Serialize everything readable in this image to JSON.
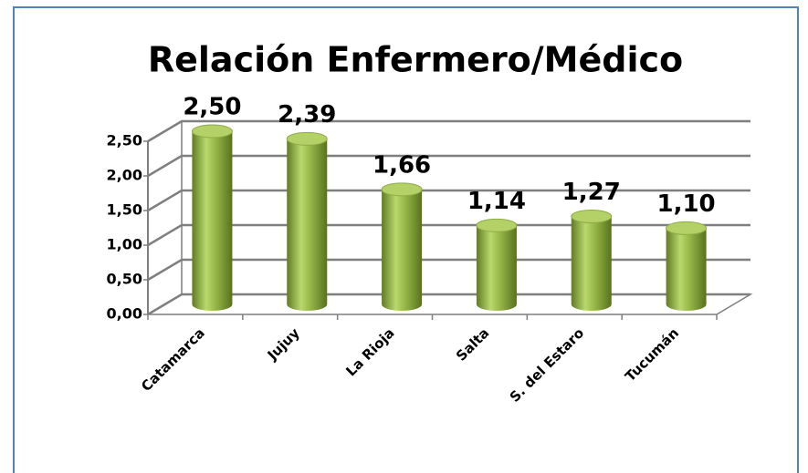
{
  "chart_data": {
    "type": "bar",
    "title": "Relación Enfermero/Médico",
    "categories": [
      "Catamarca",
      "Jujuy",
      "La Rioja",
      "Salta",
      "S. del Estaro",
      "Tucumán"
    ],
    "values": [
      2.5,
      2.39,
      1.66,
      1.14,
      1.27,
      1.1
    ],
    "value_labels": [
      "2,50",
      "2,39",
      "1,66",
      "1,14",
      "1,27",
      "1,10"
    ],
    "color": "#9bbb59",
    "ylim": [
      0,
      2.5
    ],
    "yticks": [
      {
        "value": 0,
        "label": "0,00"
      },
      {
        "value": 0.5,
        "label": "0,50"
      },
      {
        "value": 1,
        "label": "1,00"
      },
      {
        "value": 1.5,
        "label": "1,50"
      },
      {
        "value": 2,
        "label": "2,00"
      },
      {
        "value": 2.5,
        "label": "2,50"
      }
    ],
    "grid": true
  }
}
